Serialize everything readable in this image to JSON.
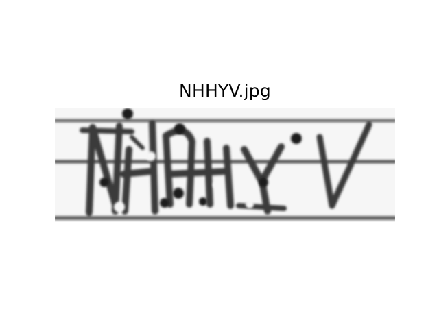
{
  "figure": {
    "title": "NHHYV.jpg"
  },
  "captcha": {
    "background_color": "#f6f6f6",
    "ink_color": "#333333"
  }
}
